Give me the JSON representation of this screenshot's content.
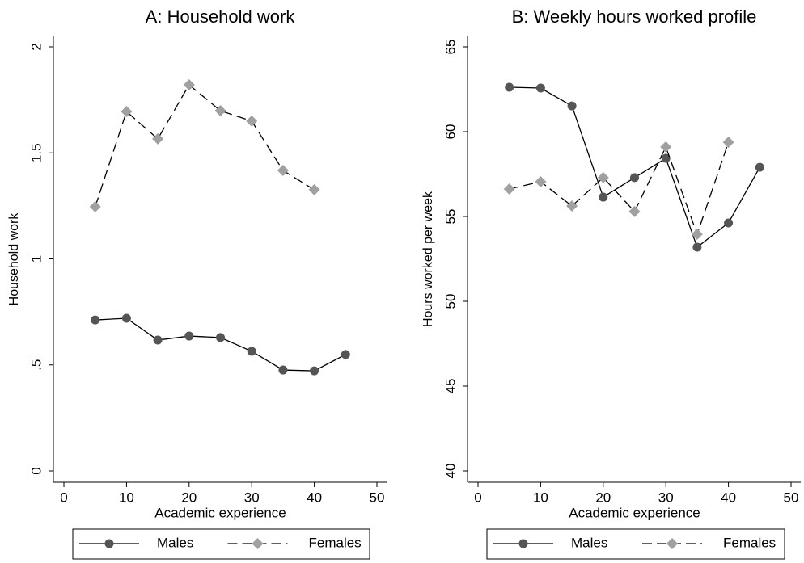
{
  "chart_data": [
    {
      "type": "line",
      "title": "A: Household work",
      "x_label": "Academic experience",
      "y_label": "Household work",
      "x": [
        5,
        10,
        15,
        20,
        25,
        30,
        35,
        40,
        45
      ],
      "series": [
        {
          "name": "Males",
          "color": "#555555",
          "linestyle": "solid",
          "marker": "circle",
          "values": [
            0.712,
            0.72,
            0.617,
            0.636,
            0.629,
            0.564,
            0.476,
            0.472,
            0.549
          ]
        },
        {
          "name": "Females",
          "color": "#a0a0a0",
          "linestyle": "dashed",
          "marker": "diamond",
          "values": [
            1.246,
            1.695,
            1.566,
            1.821,
            1.699,
            1.65,
            1.417,
            1.326,
            null
          ]
        }
      ],
      "xlim": [
        0,
        50
      ],
      "xticks": [
        0,
        10,
        20,
        30,
        40,
        50
      ],
      "ylim": [
        0,
        2
      ],
      "yticks": [
        0,
        {
          "value": 0.5,
          "label": ".5"
        },
        1,
        1.5,
        2
      ],
      "legend": "bottom"
    },
    {
      "type": "line",
      "title": "B: Weekly hours worked profile",
      "x_label": "Academic experience",
      "y_label": "Hours worked per week",
      "x": [
        5,
        10,
        15,
        20,
        25,
        30,
        35,
        40,
        45
      ],
      "series": [
        {
          "name": "Males",
          "color": "#555555",
          "linestyle": "solid",
          "marker": "circle",
          "values": [
            62.62,
            62.57,
            61.52,
            56.14,
            57.29,
            58.43,
            53.19,
            54.62,
            57.9
          ]
        },
        {
          "name": "Females",
          "color": "#a0a0a0",
          "linestyle": "dashed",
          "marker": "diamond",
          "values": [
            56.62,
            57.05,
            55.62,
            57.29,
            55.29,
            59.1,
            53.95,
            59.38,
            null
          ]
        }
      ],
      "xlim": [
        0,
        50
      ],
      "xticks": [
        0,
        10,
        20,
        30,
        40,
        50
      ],
      "ylim": [
        40,
        65
      ],
      "yticks": [
        40,
        45,
        50,
        55,
        60,
        65
      ],
      "legend": "bottom"
    }
  ]
}
